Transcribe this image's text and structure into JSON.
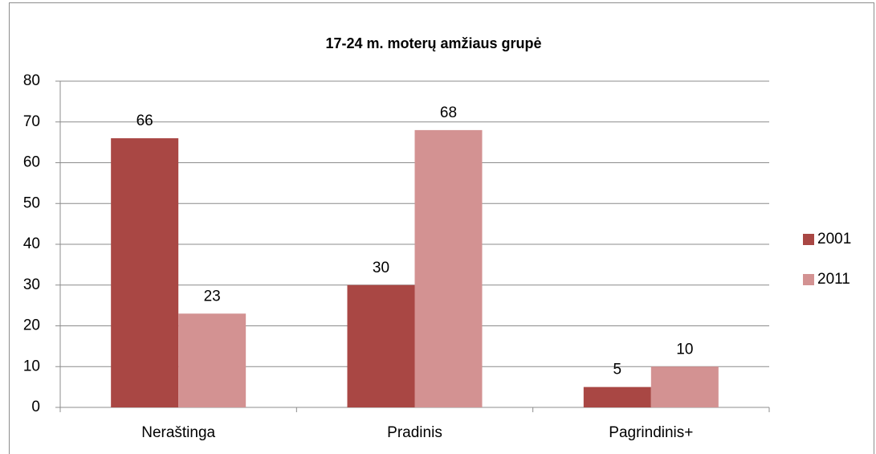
{
  "chart_data": {
    "type": "bar",
    "title": "17-24 m. moterų amžiaus grupė",
    "categories": [
      "Neraštinga",
      "Pradinis",
      "Pagrindinis+"
    ],
    "series": [
      {
        "name": "2001",
        "color": "#a94744",
        "values": [
          66,
          30,
          5
        ]
      },
      {
        "name": "2011",
        "color": "#d39292",
        "values": [
          23,
          68,
          10
        ]
      }
    ],
    "ylim": [
      0,
      80
    ],
    "yticks": [
      0,
      10,
      20,
      30,
      40,
      50,
      60,
      70,
      80
    ],
    "grid": true,
    "legend": "right"
  }
}
